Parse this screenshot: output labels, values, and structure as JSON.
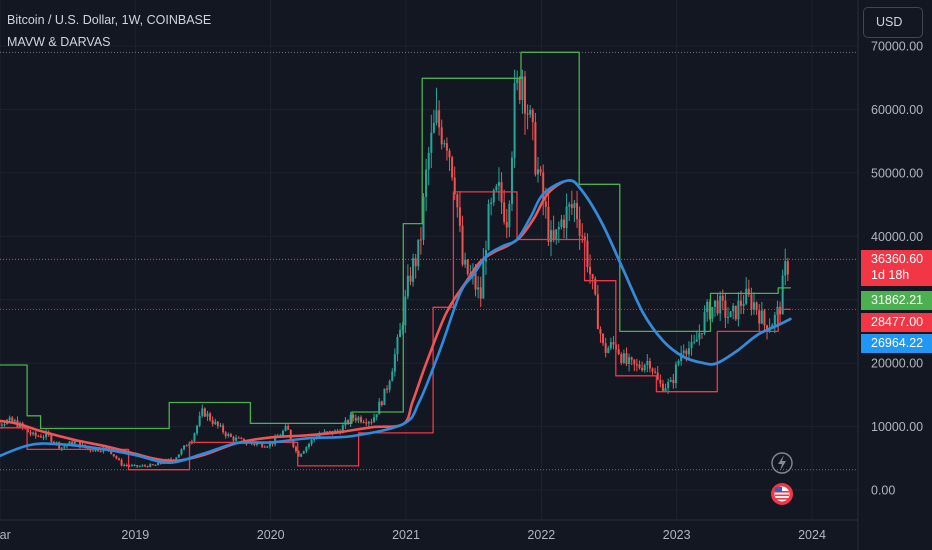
{
  "header": {
    "title": "Bitcoin / U.S. Dollar, 1W, COINBASE",
    "indicator": "MAVW & DARVAS"
  },
  "currency_button": "USD",
  "price_badges": {
    "last": "36360.60",
    "countdown": "1d 18h",
    "darvas_upper": "31862.21",
    "darvas_lower": "28477.00",
    "mavw": "26964.22"
  },
  "colors": {
    "background": "#131722",
    "up": "#26a69a",
    "down": "#ef5350",
    "darvas_upper": "#4caf50",
    "darvas_lower": "#f23645",
    "ma_fast": "#f05454",
    "ma_slow": "#2b8de0",
    "badge_green": "#4caf50",
    "badge_red": "#f23645",
    "badge_blue": "#2196f3"
  },
  "chart_data": {
    "type": "candlestick",
    "x_ticks": [
      "Mar",
      "2019",
      "2020",
      "2021",
      "2022",
      "2023",
      "2024"
    ],
    "y_ticks": [
      "0.00",
      "10000.00",
      "20000.00",
      "30000.00",
      "40000.00",
      "50000.00",
      "60000.00",
      "70000.00"
    ],
    "ylim": [
      -1500,
      71000
    ],
    "price_lines": [
      69000,
      36360.6,
      28477,
      3200
    ],
    "close_series": [
      [
        2018.1,
        10800
      ],
      [
        2018.25,
        8500
      ],
      [
        2018.35,
        8600
      ],
      [
        2018.45,
        6700
      ],
      [
        2018.55,
        7600
      ],
      [
        2018.65,
        6400
      ],
      [
        2018.8,
        6500
      ],
      [
        2018.9,
        4000
      ],
      [
        2019.0,
        3700
      ],
      [
        2019.15,
        3900
      ],
      [
        2019.3,
        5200
      ],
      [
        2019.42,
        8200
      ],
      [
        2019.5,
        12500
      ],
      [
        2019.6,
        10200
      ],
      [
        2019.7,
        8300
      ],
      [
        2019.85,
        7300
      ],
      [
        2020.0,
        7200
      ],
      [
        2020.12,
        9800
      ],
      [
        2020.2,
        5400
      ],
      [
        2020.35,
        8800
      ],
      [
        2020.5,
        9200
      ],
      [
        2020.6,
        11500
      ],
      [
        2020.75,
        11000
      ],
      [
        2020.85,
        15500
      ],
      [
        2020.95,
        24000
      ],
      [
        2021.03,
        34000
      ],
      [
        2021.1,
        38000
      ],
      [
        2021.16,
        52000
      ],
      [
        2021.22,
        58000
      ],
      [
        2021.3,
        56000
      ],
      [
        2021.36,
        49000
      ],
      [
        2021.42,
        35000
      ],
      [
        2021.5,
        33000
      ],
      [
        2021.55,
        30000
      ],
      [
        2021.6,
        42000
      ],
      [
        2021.68,
        47000
      ],
      [
        2021.75,
        43000
      ],
      [
        2021.8,
        61000
      ],
      [
        2021.86,
        66000
      ],
      [
        2021.92,
        57000
      ],
      [
        2022.0,
        47000
      ],
      [
        2022.08,
        38000
      ],
      [
        2022.16,
        43000
      ],
      [
        2022.25,
        45000
      ],
      [
        2022.33,
        38000
      ],
      [
        2022.4,
        29000
      ],
      [
        2022.46,
        22000
      ],
      [
        2022.55,
        23000
      ],
      [
        2022.62,
        20000
      ],
      [
        2022.7,
        19300
      ],
      [
        2022.8,
        20500
      ],
      [
        2022.87,
        16500
      ],
      [
        2022.96,
        16600
      ],
      [
        2023.05,
        23000
      ],
      [
        2023.12,
        22000
      ],
      [
        2023.22,
        28000
      ],
      [
        2023.3,
        29500
      ],
      [
        2023.4,
        27000
      ],
      [
        2023.5,
        30400
      ],
      [
        2023.58,
        29300
      ],
      [
        2023.65,
        26000
      ],
      [
        2023.72,
        26800
      ],
      [
        2023.76,
        28500
      ],
      [
        2023.8,
        34500
      ],
      [
        2023.84,
        36360.6
      ]
    ],
    "darvas_upper": [
      [
        2017.85,
        19700
      ],
      [
        2018.2,
        19700
      ],
      [
        2018.2,
        11700
      ],
      [
        2018.3,
        11700
      ],
      [
        2018.3,
        9700
      ],
      [
        2019.25,
        9700
      ],
      [
        2019.25,
        13800
      ],
      [
        2019.85,
        13800
      ],
      [
        2019.85,
        10500
      ],
      [
        2020.6,
        10500
      ],
      [
        2020.6,
        12300
      ],
      [
        2020.98,
        12300
      ],
      [
        2020.98,
        42000
      ],
      [
        2021.12,
        42000
      ],
      [
        2021.12,
        64900
      ],
      [
        2021.85,
        64900
      ],
      [
        2021.85,
        69000
      ],
      [
        2022.28,
        69000
      ],
      [
        2022.28,
        48200
      ],
      [
        2022.58,
        48200
      ],
      [
        2022.58,
        25000
      ],
      [
        2023.25,
        25000
      ],
      [
        2023.25,
        31000
      ],
      [
        2023.75,
        31000
      ],
      [
        2023.75,
        31862.21
      ],
      [
        2023.84,
        31862.21
      ]
    ],
    "darvas_lower": [
      [
        2017.85,
        9800
      ],
      [
        2018.2,
        9800
      ],
      [
        2018.2,
        6400
      ],
      [
        2018.95,
        6400
      ],
      [
        2018.95,
        3200
      ],
      [
        2019.4,
        3200
      ],
      [
        2019.4,
        7500
      ],
      [
        2020.2,
        7500
      ],
      [
        2020.2,
        3800
      ],
      [
        2020.65,
        3800
      ],
      [
        2020.65,
        9000
      ],
      [
        2021.2,
        9000
      ],
      [
        2021.2,
        28800
      ],
      [
        2021.35,
        28800
      ],
      [
        2021.35,
        47000
      ],
      [
        2021.82,
        47000
      ],
      [
        2021.82,
        39500
      ],
      [
        2022.32,
        39500
      ],
      [
        2022.32,
        33000
      ],
      [
        2022.55,
        33000
      ],
      [
        2022.55,
        18000
      ],
      [
        2022.85,
        18000
      ],
      [
        2022.85,
        15500
      ],
      [
        2023.3,
        15500
      ],
      [
        2023.3,
        25000
      ],
      [
        2023.75,
        25000
      ],
      [
        2023.75,
        28477
      ],
      [
        2023.84,
        28477
      ]
    ],
    "ma_fast": [
      [
        2017.85,
        11200
      ],
      [
        2018.1,
        10600
      ],
      [
        2018.3,
        9300
      ],
      [
        2018.55,
        7900
      ],
      [
        2018.8,
        6800
      ],
      [
        2019.0,
        5700
      ],
      [
        2019.15,
        4900
      ],
      [
        2019.3,
        4600
      ],
      [
        2019.5,
        5500
      ],
      [
        2019.75,
        7400
      ],
      [
        2020.0,
        8300
      ],
      [
        2020.25,
        8600
      ],
      [
        2020.5,
        9100
      ],
      [
        2020.75,
        9900
      ],
      [
        2020.98,
        10400
      ],
      [
        2021.05,
        14000
      ],
      [
        2021.15,
        20000
      ],
      [
        2021.3,
        28000
      ],
      [
        2021.45,
        33000
      ],
      [
        2021.55,
        36000
      ],
      [
        2021.65,
        37500
      ],
      [
        2021.75,
        38500
      ],
      [
        2021.85,
        40000
      ],
      [
        2021.95,
        43000
      ],
      [
        2022.05,
        46800
      ],
      [
        2022.2,
        48800
      ],
      [
        2022.3,
        47200
      ],
      [
        2022.45,
        42000
      ],
      [
        2022.6,
        35000
      ],
      [
        2022.75,
        28000
      ],
      [
        2022.9,
        23500
      ],
      [
        2023.05,
        21000
      ],
      [
        2023.2,
        20000
      ],
      [
        2023.3,
        20000
      ],
      [
        2023.45,
        22000
      ],
      [
        2023.6,
        24500
      ],
      [
        2023.75,
        26000
      ],
      [
        2023.84,
        26964.22
      ]
    ],
    "ma_slow": [
      [
        2017.85,
        4000
      ],
      [
        2018.2,
        7000
      ],
      [
        2018.45,
        7200
      ],
      [
        2018.75,
        6500
      ],
      [
        2019.0,
        5500
      ],
      [
        2019.25,
        4300
      ],
      [
        2019.5,
        5700
      ],
      [
        2019.75,
        7400
      ],
      [
        2020.0,
        7500
      ],
      [
        2020.3,
        8200
      ],
      [
        2020.6,
        8500
      ],
      [
        2020.98,
        10400
      ],
      [
        2021.1,
        14000
      ],
      [
        2021.25,
        22000
      ],
      [
        2021.4,
        31000
      ],
      [
        2021.5,
        34000
      ],
      [
        2021.6,
        37000
      ],
      [
        2021.72,
        38500
      ],
      [
        2021.82,
        39500
      ],
      [
        2021.92,
        43000
      ],
      [
        2022.02,
        46800
      ],
      [
        2022.2,
        48800
      ],
      [
        2022.3,
        47200
      ],
      [
        2022.45,
        42000
      ],
      [
        2022.6,
        35000
      ],
      [
        2022.75,
        28000
      ],
      [
        2022.9,
        23500
      ],
      [
        2023.05,
        21000
      ],
      [
        2023.2,
        20000
      ],
      [
        2023.3,
        20000
      ],
      [
        2023.45,
        22000
      ],
      [
        2023.6,
        24500
      ],
      [
        2023.75,
        26000
      ],
      [
        2023.84,
        26964.22
      ]
    ]
  }
}
